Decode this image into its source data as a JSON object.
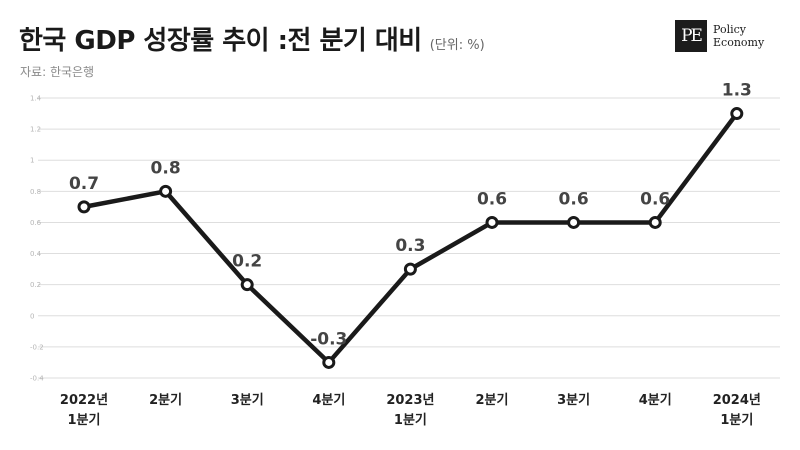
{
  "header": {
    "title": "한국 GDP 성장률 추이 :전 분기 대비",
    "unit": "(단위: %)",
    "source": "자료: 한국은행"
  },
  "logo": {
    "mark": "PE",
    "line1": "Policy",
    "line2": "Economy"
  },
  "chart_data": {
    "type": "line",
    "title": "한국 GDP 성장률 추이 :전 분기 대비",
    "categories": [
      [
        "2022년",
        "1분기"
      ],
      [
        "2분기"
      ],
      [
        "3분기"
      ],
      [
        "4분기"
      ],
      [
        "2023년",
        "1분기"
      ],
      [
        "2분기"
      ],
      [
        "3분기"
      ],
      [
        "4분기"
      ],
      [
        "2024년",
        "1분기"
      ]
    ],
    "values": [
      0.7,
      0.8,
      0.2,
      -0.3,
      0.3,
      0.6,
      0.6,
      0.6,
      1.3
    ],
    "data_labels": [
      "0.7",
      "0.8",
      "0.2",
      "-0.3",
      "0.3",
      "0.6",
      "0.6",
      "0.6",
      "1.3"
    ],
    "yticks": [
      1.4,
      1.2,
      1,
      0.8,
      0.6,
      0.4,
      0.2,
      0,
      -0.2,
      -0.4
    ],
    "ytick_labels": [
      "1.4",
      "1.2",
      "1",
      "0.8",
      "0.6",
      "0.4",
      "0.2",
      "0",
      "-0.2",
      "-0.4"
    ],
    "ylim": [
      -0.4,
      1.4
    ],
    "grid": true,
    "colors": {
      "line": "#1a1a1a",
      "marker_fill": "#ffffff",
      "grid": "#dedede"
    }
  }
}
